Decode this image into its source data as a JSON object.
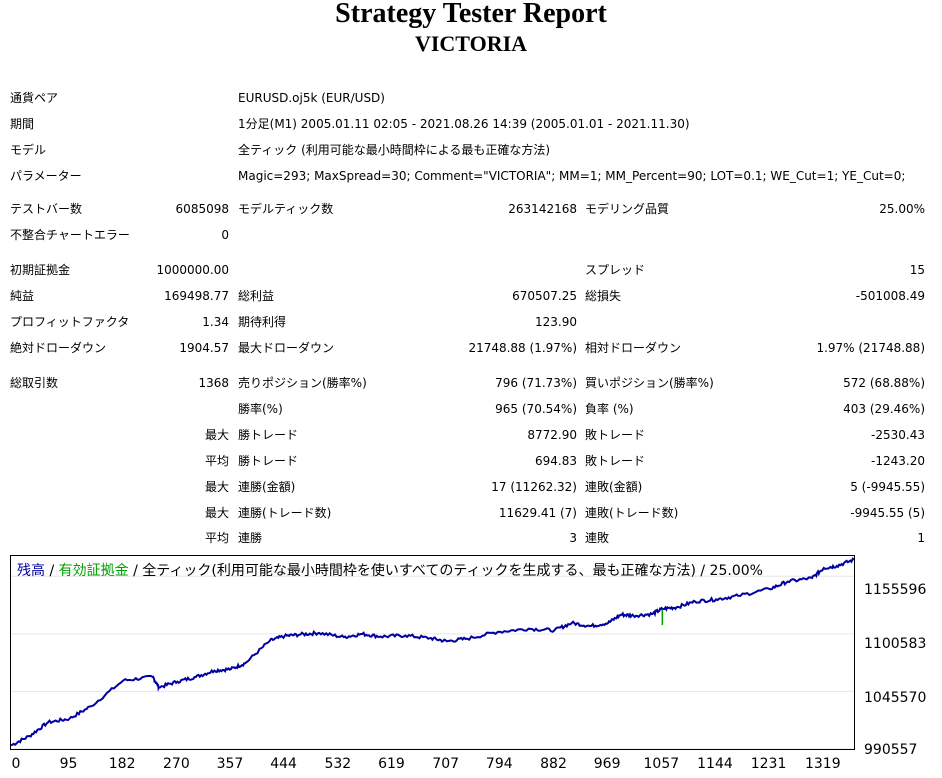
{
  "header": {
    "title": "Strategy Tester Report",
    "subtitle": "VICTORIA"
  },
  "info": {
    "pair_label": "通貨ペア",
    "pair_value": "EURUSD.oj5k (EUR/USD)",
    "period_label": "期間",
    "period_value": "1分足(M1) 2005.01.11 02:05 - 2021.08.26 14:39 (2005.01.01 - 2021.11.30)",
    "model_label": "モデル",
    "model_value": "全ティック (利用可能な最小時間枠による最も正確な方法)",
    "params_label": "パラメーター",
    "params_value": "Magic=293; MaxSpread=30; Comment=\"VICTORIA\"; MM=1; MM_Percent=90; LOT=0.1; WE_Cut=1; YE_Cut=0;"
  },
  "stats": {
    "test_bars_label": "テストバー数",
    "test_bars": "6085098",
    "model_ticks_label": "モデルティック数",
    "model_ticks": "263142168",
    "model_quality_label": "モデリング品質",
    "model_quality": "25.00%",
    "mismatch_label": "不整合チャートエラー",
    "mismatch": "0",
    "initial_deposit_label": "初期証拠金",
    "initial_deposit": "1000000.00",
    "spread_label": "スプレッド",
    "spread": "15",
    "net_profit_label": "純益",
    "net_profit": "169498.77",
    "gross_profit_label": "総利益",
    "gross_profit": "670507.25",
    "gross_loss_label": "総損失",
    "gross_loss": "-501008.49",
    "profit_factor_label": "プロフィットファクタ",
    "profit_factor": "1.34",
    "expected_payoff_label": "期待利得",
    "expected_payoff": "123.90",
    "abs_dd_label": "絶対ドローダウン",
    "abs_dd": "1904.57",
    "max_dd_label": "最大ドローダウン",
    "max_dd": "21748.88 (1.97%)",
    "rel_dd_label": "相対ドローダウン",
    "rel_dd": "1.97% (21748.88)",
    "total_trades_label": "総取引数",
    "total_trades": "1368",
    "short_label": "売りポジション(勝率%)",
    "short": "796 (71.73%)",
    "long_label": "買いポジション(勝率%)",
    "long": "572 (68.88%)",
    "win_rate_label": "勝率(%)",
    "win_rate": "965 (70.54%)",
    "loss_rate_label": "負率 (%)",
    "loss_rate": "403 (29.46%)",
    "max_label": "最大",
    "avg_label": "平均",
    "win_trade_label": "勝トレード",
    "loss_trade_label": "敗トレード",
    "largest_win": "8772.90",
    "largest_loss": "-2530.43",
    "avg_win": "694.83",
    "avg_loss": "-1243.20",
    "consec_wins_money_label": "連勝(金額)",
    "consec_wins_money": "17 (11262.32)",
    "consec_losses_money_label": "連敗(金額)",
    "consec_losses_money": "5 (-9945.55)",
    "max_consec_profit_label": "連勝(トレード数)",
    "max_consec_profit": "11629.41 (7)",
    "max_consec_loss_label": "連敗(トレード数)",
    "max_consec_loss": "-9945.55 (5)",
    "avg_consec_wins_label": "連勝",
    "avg_consec_wins": "3",
    "avg_consec_losses_label": "連敗",
    "avg_consec_losses": "1"
  },
  "chart_data": {
    "type": "line",
    "legend": {
      "balance": "残高",
      "sep": " / ",
      "equity": "有効証拠金",
      "rest": " / 全ティック(利用可能な最小時間枠を使いすべてのティックを生成する、最も正確な方法) / 25.00%"
    },
    "colors": {
      "balance": "#0000a0",
      "equity": "#00a000"
    },
    "y_ticks": [
      "1155596",
      "1100583",
      "1045570",
      "990557"
    ],
    "x_ticks": [
      "0",
      "95",
      "182",
      "270",
      "357",
      "444",
      "532",
      "619",
      "707",
      "794",
      "882",
      "969",
      "1057",
      "1144",
      "1231",
      "1319"
    ],
    "xlim": [
      0,
      1368
    ],
    "ylim": [
      990557,
      1175000
    ],
    "series": [
      {
        "x": [
          0,
          30,
          60,
          95,
          130,
          182,
          230,
          240,
          270,
          300,
          330,
          357,
          380,
          420,
          444,
          470,
          500,
          540,
          570,
          600,
          640,
          680,
          707,
          740,
          790,
          840,
          882,
          910,
          940,
          969,
          990,
          1010,
          1040,
          1057,
          1080,
          1110,
          1144,
          1180,
          1231,
          1260,
          1300,
          1319,
          1340,
          1368
        ],
        "y": [
          994000,
          1003000,
          1016000,
          1019500,
          1031500,
          1056000,
          1059500,
          1049500,
          1055000,
          1059500,
          1065500,
          1067000,
          1072500,
          1094000,
          1098500,
          1100000,
          1101500,
          1097500,
          1100500,
          1098000,
          1099000,
          1096500,
          1093500,
          1096000,
          1102500,
          1105500,
          1104000,
          1111000,
          1108000,
          1111000,
          1119000,
          1118000,
          1119500,
          1124500,
          1126000,
          1131500,
          1133500,
          1137000,
          1143500,
          1150500,
          1154000,
          1163500,
          1165500,
          1171500
        ]
      },
      {
        "x": [
          1057,
          1057
        ],
        "y": [
          1109000,
          1124000
        ]
      }
    ]
  }
}
